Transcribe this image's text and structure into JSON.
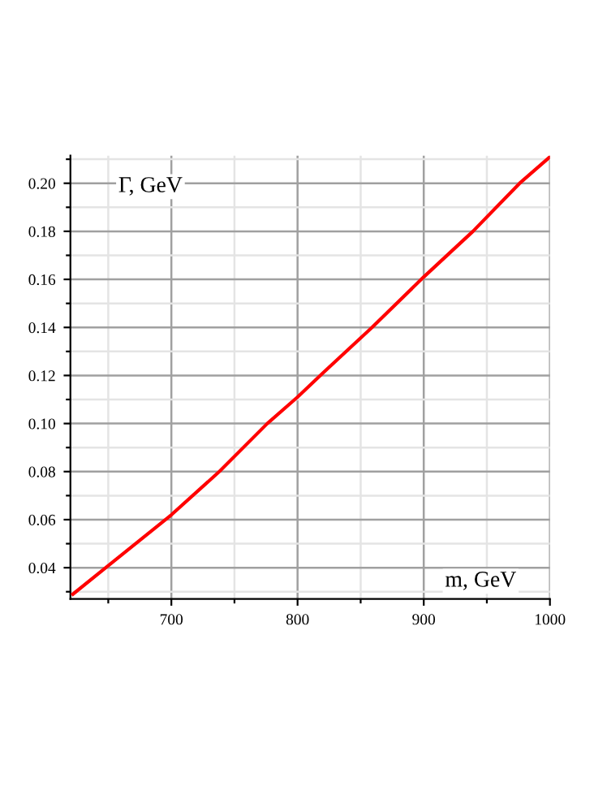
{
  "chart_data": {
    "type": "line",
    "xlabel": "m, GeV",
    "ylabel": "Γ, GeV",
    "x": [
      622,
      648,
      700,
      738,
      776,
      800,
      820,
      859,
      900,
      939,
      976,
      1000
    ],
    "series": [
      {
        "color": "#ff0000",
        "values": [
          0.029,
          0.04,
          0.062,
          0.08,
          0.1,
          0.111,
          0.121,
          0.14,
          0.161,
          0.18,
          0.2,
          0.211
        ]
      }
    ],
    "xlim": [
      620,
      1000
    ],
    "ylim": [
      0.027,
      0.2115
    ],
    "xticks": [
      {
        "value": 650,
        "label": null
      },
      700,
      {
        "value": 750,
        "label": null
      },
      800,
      {
        "value": 850,
        "label": null
      },
      900,
      {
        "value": 950,
        "label": null
      },
      1000
    ],
    "yticks": [
      {
        "value": 0.03,
        "label": null
      },
      {
        "value": 0.04,
        "label": "0.04"
      },
      {
        "value": 0.05,
        "label": null
      },
      {
        "value": 0.06,
        "label": "0.06"
      },
      {
        "value": 0.07,
        "label": null
      },
      {
        "value": 0.08,
        "label": "0.08"
      },
      {
        "value": 0.09,
        "label": null
      },
      {
        "value": 0.1,
        "label": "0.10"
      },
      {
        "value": 0.11,
        "label": null
      },
      {
        "value": 0.12,
        "label": "0.12"
      },
      {
        "value": 0.13,
        "label": null
      },
      {
        "value": 0.14,
        "label": "0.14"
      },
      {
        "value": 0.15,
        "label": null
      },
      {
        "value": 0.16,
        "label": "0.16"
      },
      {
        "value": 0.17,
        "label": null
      },
      {
        "value": 0.18,
        "label": "0.18"
      },
      {
        "value": 0.19,
        "label": null
      },
      {
        "value": 0.2,
        "label": "0.20"
      },
      {
        "value": 0.21,
        "label": null
      }
    ],
    "grid": true,
    "marker": "none",
    "line_style": "solid"
  }
}
